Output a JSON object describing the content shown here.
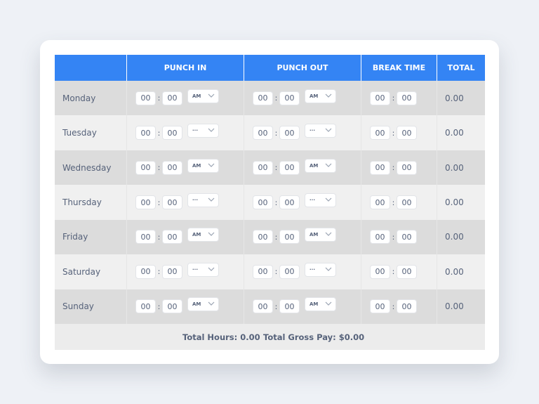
{
  "table": {
    "columns": [
      "PUNCH IN",
      "PUNCH OUT",
      "BREAK TIME",
      "TOTAL"
    ],
    "separator": ":",
    "rows": [
      {
        "day": "Monday",
        "punch_in": {
          "hour": "00",
          "minute": "00",
          "period": "AM"
        },
        "punch_out": {
          "hour": "00",
          "minute": "00",
          "period": "AM"
        },
        "break": {
          "hour": "00",
          "minute": "00"
        },
        "total": "0.00"
      },
      {
        "day": "Tuesday",
        "punch_in": {
          "hour": "00",
          "minute": "00",
          "period": "···"
        },
        "punch_out": {
          "hour": "00",
          "minute": "00",
          "period": "···"
        },
        "break": {
          "hour": "00",
          "minute": "00"
        },
        "total": "0.00"
      },
      {
        "day": "Wednesday",
        "punch_in": {
          "hour": "00",
          "minute": "00",
          "period": "AM"
        },
        "punch_out": {
          "hour": "00",
          "minute": "00",
          "period": "AM"
        },
        "break": {
          "hour": "00",
          "minute": "00"
        },
        "total": "0.00"
      },
      {
        "day": "Thursday",
        "punch_in": {
          "hour": "00",
          "minute": "00",
          "period": "···"
        },
        "punch_out": {
          "hour": "00",
          "minute": "00",
          "period": "···"
        },
        "break": {
          "hour": "00",
          "minute": "00"
        },
        "total": "0.00"
      },
      {
        "day": "Friday",
        "punch_in": {
          "hour": "00",
          "minute": "00",
          "period": "AM"
        },
        "punch_out": {
          "hour": "00",
          "minute": "00",
          "period": "AM"
        },
        "break": {
          "hour": "00",
          "minute": "00"
        },
        "total": "0.00"
      },
      {
        "day": "Saturday",
        "punch_in": {
          "hour": "00",
          "minute": "00",
          "period": "···"
        },
        "punch_out": {
          "hour": "00",
          "minute": "00",
          "period": "···"
        },
        "break": {
          "hour": "00",
          "minute": "00"
        },
        "total": "0.00"
      },
      {
        "day": "Sunday",
        "punch_in": {
          "hour": "00",
          "minute": "00",
          "period": "AM"
        },
        "punch_out": {
          "hour": "00",
          "minute": "00",
          "period": "AM"
        },
        "break": {
          "hour": "00",
          "minute": "00"
        },
        "total": "0.00"
      }
    ],
    "footer": {
      "total_hours": "Total Hours: 0.00",
      "total_gross_pay": "Total Gross Pay: $0.00"
    }
  }
}
